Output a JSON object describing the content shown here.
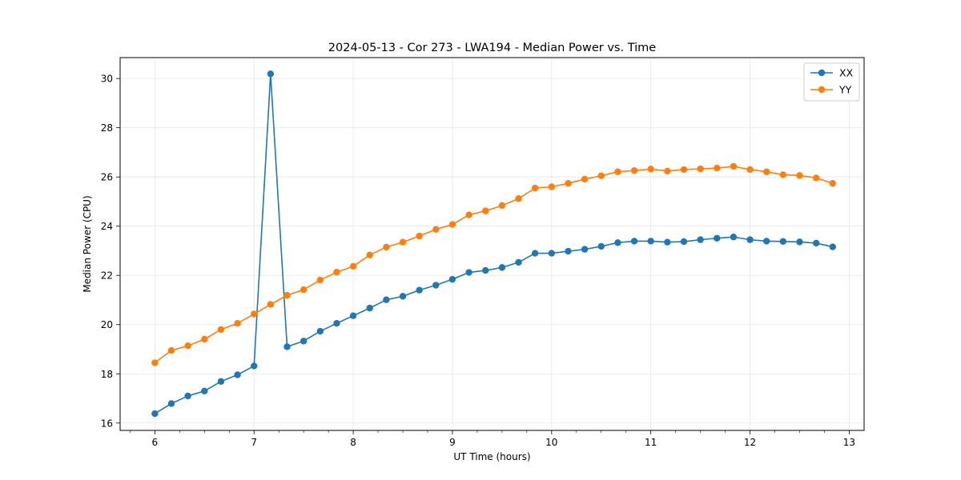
{
  "chart_data": {
    "type": "line",
    "title": "2024-05-13 - Cor 273 - LWA194 - Median Power vs. Time",
    "xlabel": "UT Time (hours)",
    "ylabel": "Median Power (CPU)",
    "xlim": [
      5.65,
      13.15
    ],
    "ylim": [
      15.7,
      30.85
    ],
    "xticks": [
      6,
      7,
      8,
      9,
      10,
      11,
      12,
      13
    ],
    "xtick_labels": [
      "6",
      "7",
      "8",
      "9",
      "10",
      "11",
      "12",
      "13"
    ],
    "yticks": [
      16,
      18,
      20,
      22,
      24,
      26,
      28,
      30
    ],
    "ytick_labels": [
      "16",
      "18",
      "20",
      "22",
      "24",
      "26",
      "28",
      "30"
    ],
    "grid": true,
    "legend_position": "top-right",
    "x": [
      6.0,
      6.1667,
      6.3333,
      6.5,
      6.6667,
      6.8333,
      7.0,
      7.1667,
      7.3333,
      7.5,
      7.6667,
      7.8333,
      8.0,
      8.1667,
      8.3333,
      8.5,
      8.6667,
      8.8333,
      9.0,
      9.1667,
      9.3333,
      9.5,
      9.6667,
      9.8333,
      10.0,
      10.1667,
      10.3333,
      10.5,
      10.6667,
      10.8333,
      11.0,
      11.1667,
      11.3333,
      11.5,
      11.6667,
      11.8333,
      12.0,
      12.1667,
      12.3333,
      12.5,
      12.6667,
      12.8333
    ],
    "series": [
      {
        "name": "XX",
        "color": "#1f77b4",
        "values": [
          16.38,
          16.79,
          17.1,
          17.3,
          17.69,
          17.96,
          18.32,
          30.19,
          19.1,
          19.33,
          19.73,
          20.05,
          20.36,
          20.67,
          21.01,
          21.15,
          21.4,
          21.6,
          21.84,
          22.12,
          22.2,
          22.32,
          22.53,
          22.9,
          22.9,
          22.98,
          23.06,
          23.18,
          23.33,
          23.39,
          23.39,
          23.35,
          23.37,
          23.45,
          23.51,
          23.56,
          23.45,
          23.39,
          23.38,
          23.36,
          23.31,
          23.16
        ]
      },
      {
        "name": "YY",
        "color": "#ff7f0e",
        "values": [
          18.45,
          18.95,
          19.14,
          19.41,
          19.8,
          20.05,
          20.43,
          20.82,
          21.19,
          21.42,
          21.81,
          22.13,
          22.37,
          22.83,
          23.15,
          23.35,
          23.6,
          23.87,
          24.07,
          24.46,
          24.62,
          24.84,
          25.12,
          25.55,
          25.6,
          25.74,
          25.91,
          26.05,
          26.21,
          26.26,
          26.32,
          26.24,
          26.3,
          26.33,
          26.36,
          26.43,
          26.3,
          26.21,
          26.09,
          26.06,
          25.96,
          25.74
        ]
      }
    ]
  }
}
